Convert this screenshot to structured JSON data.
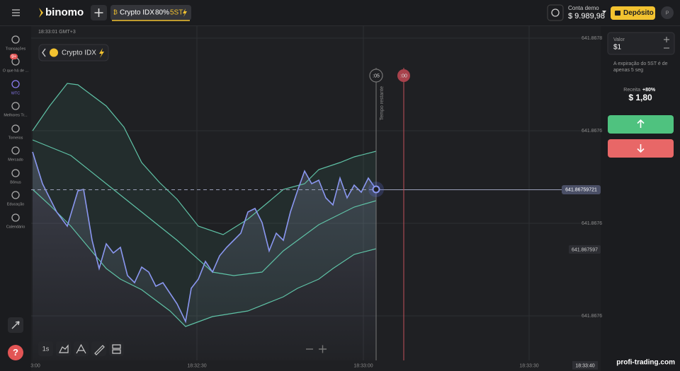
{
  "header": {
    "logo": "binomo",
    "asset": "Crypto IDX",
    "payout": "80%",
    "expiry": "5ST",
    "account_label": "Conta demo",
    "balance": "$ 9.989,98",
    "deposit": "Depósito",
    "avatar": "P"
  },
  "sidebar": {
    "items": [
      "Transações",
      "O que há de ...",
      "WTC",
      "Melhores Tr...",
      "Torneios",
      "Mercado",
      "Bônus",
      "Educação",
      "Calendário"
    ],
    "badge": "9+"
  },
  "chart": {
    "timestamp": "18:33:01 GMT+3",
    "asset": "Crypto IDX",
    "price_labels": [
      "641.8678",
      "641.8676",
      "641.8676",
      "641.8676"
    ],
    "current_price": "641.86759721",
    "strike_price": "641.867597",
    "time_labels": [
      "3:00",
      "18:32:30",
      "18:33:00",
      "18:33:30"
    ],
    "current_time": "18:33:40",
    "timer": ":05",
    "expiry_timer": ":00",
    "remaining_label": "Tempo restante",
    "interval": "1s"
  },
  "panel": {
    "amount_label": "Valor",
    "amount": "$1",
    "expiry_note": [
      "A expiração do 5ST é de",
      "apenas 5 seg"
    ],
    "income_label": "Receita",
    "income_percent": "+80%",
    "income": "$ 1,80"
  },
  "watermark": "profi-trading.com"
}
